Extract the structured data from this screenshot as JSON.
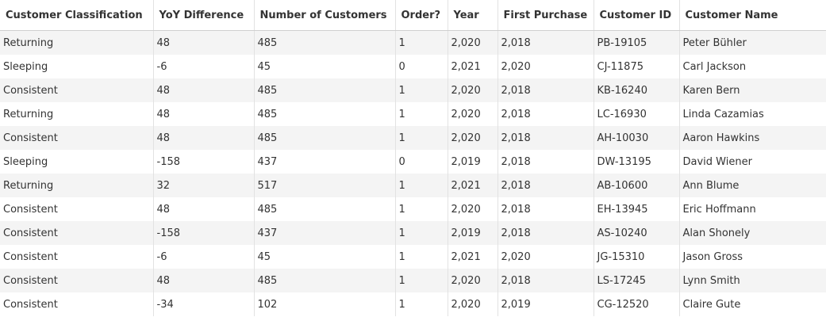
{
  "table": {
    "columns": [
      "Customer Classification",
      "YoY Difference",
      "Number of Customers",
      "Order?",
      "Year",
      "First Purchase",
      "Customer ID",
      "Customer Name"
    ],
    "rows": [
      [
        "Returning",
        "48",
        "485",
        "1",
        "2,020",
        "2,018",
        "PB-19105",
        "Peter Bühler"
      ],
      [
        "Sleeping",
        "-6",
        "45",
        "0",
        "2,021",
        "2,020",
        "CJ-11875",
        "Carl Jackson"
      ],
      [
        "Consistent",
        "48",
        "485",
        "1",
        "2,020",
        "2,018",
        "KB-16240",
        "Karen Bern"
      ],
      [
        "Returning",
        "48",
        "485",
        "1",
        "2,020",
        "2,018",
        "LC-16930",
        "Linda Cazamias"
      ],
      [
        "Consistent",
        "48",
        "485",
        "1",
        "2,020",
        "2,018",
        "AH-10030",
        "Aaron Hawkins"
      ],
      [
        "Sleeping",
        "-158",
        "437",
        "0",
        "2,019",
        "2,018",
        "DW-13195",
        "David Wiener"
      ],
      [
        "Returning",
        "32",
        "517",
        "1",
        "2,021",
        "2,018",
        "AB-10600",
        "Ann Blume"
      ],
      [
        "Consistent",
        "48",
        "485",
        "1",
        "2,020",
        "2,018",
        "EH-13945",
        "Eric Hoffmann"
      ],
      [
        "Consistent",
        "-158",
        "437",
        "1",
        "2,019",
        "2,018",
        "AS-10240",
        "Alan Shonely"
      ],
      [
        "Consistent",
        "-6",
        "45",
        "1",
        "2,021",
        "2,020",
        "JG-15310",
        "Jason Gross"
      ],
      [
        "Consistent",
        "48",
        "485",
        "1",
        "2,020",
        "2,018",
        "LS-17245",
        "Lynn Smith"
      ],
      [
        "Consistent",
        "-34",
        "102",
        "1",
        "2,020",
        "2,019",
        "CG-12520",
        "Claire Gute"
      ]
    ]
  },
  "colors": {
    "band_row": "#f4f4f4",
    "plain_row": "#ffffff",
    "gridline": "#e2e2e2",
    "text": "#333333"
  }
}
